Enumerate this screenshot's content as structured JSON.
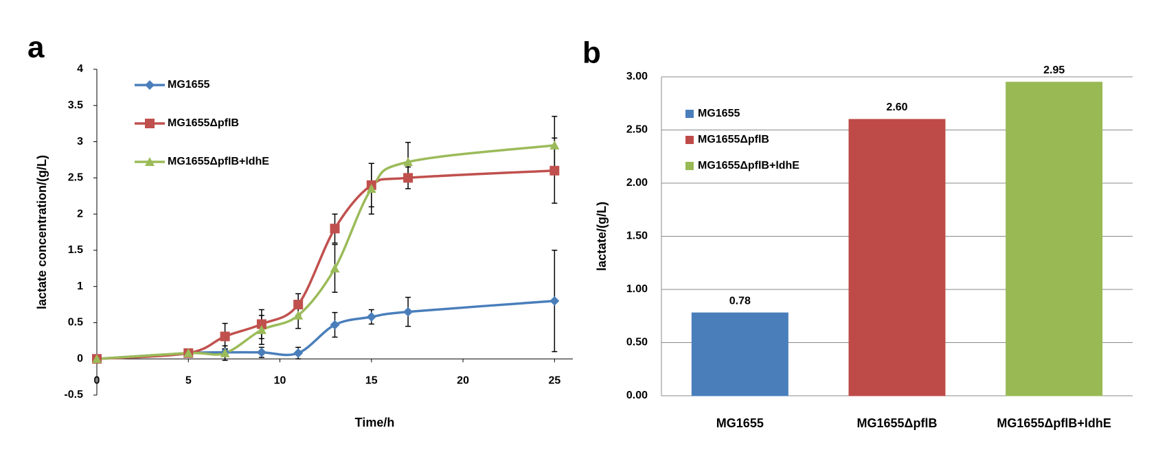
{
  "chart_data": [
    {
      "type": "line",
      "panel_label": "a",
      "x_label": "Time/h",
      "y_label": "lactate concentration/(g/L)",
      "x": [
        0,
        5,
        7,
        9,
        11,
        13,
        15,
        17,
        25
      ],
      "series": [
        {
          "name": "MG1655",
          "color": "#4a7ebb",
          "marker": "diamond",
          "values": [
            0,
            0.08,
            0.09,
            0.09,
            0.08,
            0.47,
            0.58,
            0.65,
            0.8
          ],
          "errors": [
            0,
            0.05,
            0.05,
            0.07,
            0.08,
            0.17,
            0.1,
            0.2,
            0.7
          ]
        },
        {
          "name": "MG1655ΔpflB",
          "color": "#c0504d",
          "marker": "square",
          "values": [
            0,
            0.08,
            0.31,
            0.48,
            0.75,
            1.8,
            2.4,
            2.5,
            2.6
          ],
          "errors": [
            0,
            0.05,
            0.18,
            0.2,
            0.15,
            0.2,
            0.3,
            0.15,
            0.45
          ]
        },
        {
          "name": "MG1655ΔpflB+ldhE",
          "color": "#9bbb59",
          "marker": "triangle",
          "values": [
            0,
            0.08,
            0.08,
            0.4,
            0.6,
            1.25,
            2.35,
            2.72,
            2.95
          ],
          "errors": [
            0,
            0.05,
            0.1,
            0.2,
            0.18,
            0.33,
            0.35,
            0.27,
            0.4
          ]
        }
      ],
      "xlim": [
        0,
        26
      ],
      "xticks": [
        0,
        5,
        10,
        15,
        20,
        25
      ],
      "ylim": [
        -0.5,
        4
      ],
      "yticks": [
        -0.5,
        0,
        0.5,
        1,
        1.5,
        2,
        2.5,
        3,
        3.5,
        4
      ],
      "grid": false
    },
    {
      "type": "bar",
      "panel_label": "b",
      "y_label": "lactate/(g/L)",
      "categories": [
        "MG1655",
        "MG1655ΔpflB",
        "MG1655ΔpflB+ldhE"
      ],
      "values": [
        0.78,
        2.6,
        2.95
      ],
      "value_labels": [
        "0.78",
        "2.60",
        "2.95"
      ],
      "colors": [
        "#4a7ebb",
        "#be4b48",
        "#98b954"
      ],
      "ylim": [
        0,
        3
      ],
      "yticks": [
        {
          "value": 0,
          "label": "0.00"
        },
        {
          "value": 0.5,
          "label": "0.50"
        },
        {
          "value": 1,
          "label": "1.00"
        },
        {
          "value": 1.5,
          "label": "1.50"
        },
        {
          "value": 2,
          "label": "2.00"
        },
        {
          "value": 2.5,
          "label": "2.50"
        },
        {
          "value": 3,
          "label": "3.00"
        }
      ],
      "grid": true
    }
  ]
}
